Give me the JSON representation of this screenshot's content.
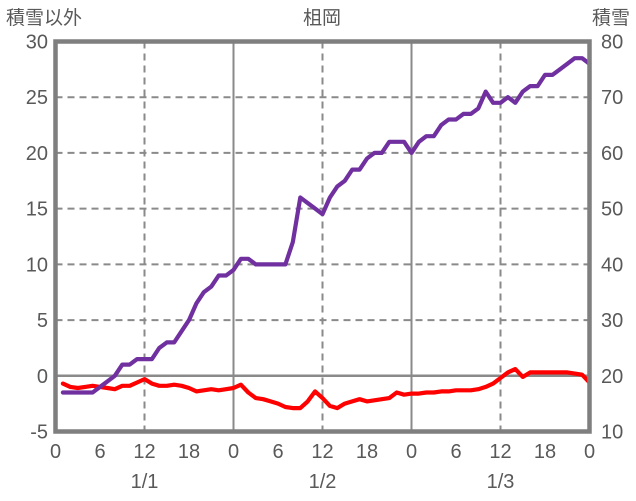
{
  "header": {
    "left_axis_title": "積雪以外",
    "title": "柤岡",
    "right_axis_title": "積雪"
  },
  "colors": {
    "grid": "#8a8a8a",
    "border": "#7f7f7f",
    "text": "#595959",
    "background": "#ffffff",
    "snow_line": "#7030a0",
    "other_line": "#ff0000"
  },
  "chart_data": {
    "type": "line",
    "title": "柤岡",
    "left_axis": {
      "title": "積雪以外",
      "ticks": [
        30,
        25,
        20,
        15,
        10,
        5,
        0,
        -5
      ],
      "min": -5,
      "max": 30
    },
    "right_axis": {
      "title": "積雪",
      "ticks": [
        80,
        70,
        60,
        50,
        40,
        30,
        20,
        10
      ],
      "min": 10,
      "max": 80
    },
    "x_axis": {
      "total_hours": 72,
      "tick_hours": [
        0,
        6,
        12,
        18,
        24,
        30,
        36,
        42,
        48,
        54,
        60,
        66,
        72
      ],
      "tick_labels": [
        "0",
        "6",
        "12",
        "18",
        "0",
        "6",
        "12",
        "18",
        "0",
        "6",
        "12",
        "18",
        "0"
      ],
      "day_labels": [
        {
          "label": "1/1",
          "hour": 12
        },
        {
          "label": "1/2",
          "hour": 36
        },
        {
          "label": "1/3",
          "hour": 60
        }
      ]
    },
    "grid": {
      "h_dashed_at": [
        25,
        20,
        15,
        10,
        5
      ],
      "h_solid_at": [
        0
      ],
      "v_dashed_at_hours": [
        12,
        36,
        60
      ],
      "v_solid_at_hours": [
        24,
        48
      ]
    },
    "series": [
      {
        "name": "積雪以外",
        "axis": "left",
        "color": "#ff0000",
        "start_hour": 1,
        "step_hours": 1,
        "values": [
          -0.7,
          -1.0,
          -1.1,
          -1.0,
          -0.9,
          -1.0,
          -1.1,
          -1.2,
          -0.9,
          -0.9,
          -0.6,
          -0.3,
          -0.7,
          -0.9,
          -0.9,
          -0.8,
          -0.9,
          -1.1,
          -1.4,
          -1.3,
          -1.2,
          -1.3,
          -1.2,
          -1.1,
          -0.8,
          -1.5,
          -2.0,
          -2.1,
          -2.3,
          -2.5,
          -2.8,
          -2.9,
          -2.9,
          -2.3,
          -1.4,
          -2.0,
          -2.7,
          -2.9,
          -2.5,
          -2.3,
          -2.1,
          -2.3,
          -2.2,
          -2.1,
          -2.0,
          -1.5,
          -1.7,
          -1.6,
          -1.6,
          -1.5,
          -1.5,
          -1.4,
          -1.4,
          -1.3,
          -1.3,
          -1.3,
          -1.2,
          -1.0,
          -0.7,
          -0.2,
          0.3,
          0.6,
          -0.1,
          0.3,
          0.3,
          0.3,
          0.3,
          0.3,
          0.3,
          0.2,
          0.1,
          -0.6
        ]
      },
      {
        "name": "積雪",
        "axis": "right",
        "color": "#7030a0",
        "start_hour": 1,
        "step_hours": 1,
        "values": [
          17,
          17,
          17,
          17,
          17,
          18,
          19,
          20,
          22,
          22,
          23,
          23,
          23,
          25,
          26,
          26,
          28,
          30,
          33,
          35,
          36,
          38,
          38,
          39,
          41,
          41,
          40,
          40,
          40,
          40,
          40,
          44,
          52,
          51,
          50,
          49,
          52,
          54,
          55,
          57,
          57,
          59,
          60,
          60,
          62,
          62,
          62,
          60,
          62,
          63,
          63,
          65,
          66,
          66,
          67,
          67,
          68,
          71,
          69,
          69,
          70,
          69,
          71,
          72,
          72,
          74,
          74,
          75,
          76,
          77,
          77,
          76
        ]
      }
    ]
  }
}
